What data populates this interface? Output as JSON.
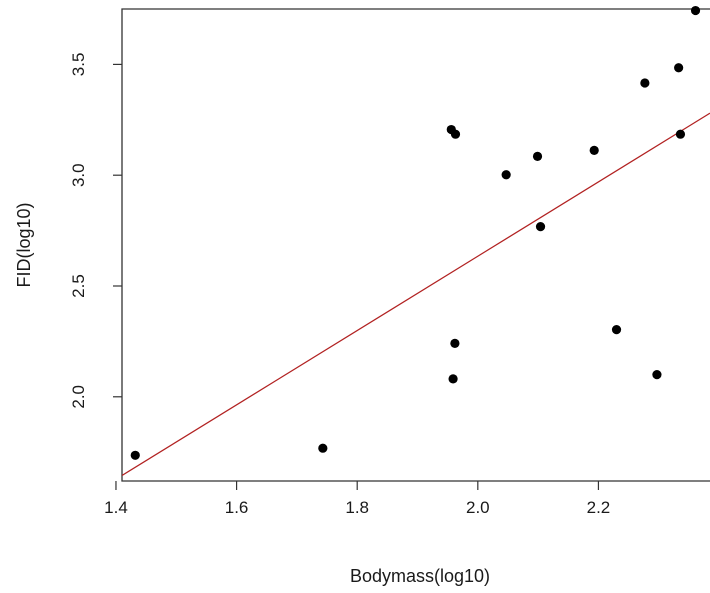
{
  "chart_data": {
    "type": "scatter",
    "title": "",
    "xlabel": "Bodymass(log10)",
    "ylabel": "FID(log10)",
    "xlim": [
      1.41,
      2.385
    ],
    "ylim": [
      1.62,
      3.75
    ],
    "xticks": [
      1.4,
      1.6,
      1.8,
      2.0,
      2.2
    ],
    "xtick_labels": [
      "1.4",
      "1.6",
      "1.8",
      "2.0",
      "2.2"
    ],
    "yticks": [
      2.0,
      2.5,
      3.0,
      3.5
    ],
    "ytick_labels": [
      "2.0",
      "2.5",
      "3.0",
      "3.5"
    ],
    "grid": false,
    "legend": "none",
    "point_color": "#000000",
    "line_color": "#b22222",
    "points": [
      {
        "x": 1.432,
        "y": 1.736
      },
      {
        "x": 1.743,
        "y": 1.768
      },
      {
        "x": 1.956,
        "y": 3.206
      },
      {
        "x": 1.963,
        "y": 3.185
      },
      {
        "x": 1.959,
        "y": 2.081
      },
      {
        "x": 1.962,
        "y": 2.241
      },
      {
        "x": 2.047,
        "y": 3.002
      },
      {
        "x": 2.099,
        "y": 3.085
      },
      {
        "x": 2.104,
        "y": 2.768
      },
      {
        "x": 2.193,
        "y": 3.112
      },
      {
        "x": 2.23,
        "y": 2.303
      },
      {
        "x": 2.277,
        "y": 3.416
      },
      {
        "x": 2.297,
        "y": 2.1
      },
      {
        "x": 2.333,
        "y": 3.485
      },
      {
        "x": 2.336,
        "y": 3.185
      },
      {
        "x": 2.361,
        "y": 3.743
      }
    ],
    "fit_line": {
      "x": [
        1.41,
        2.385
      ],
      "y": [
        1.645,
        3.28
      ]
    }
  }
}
